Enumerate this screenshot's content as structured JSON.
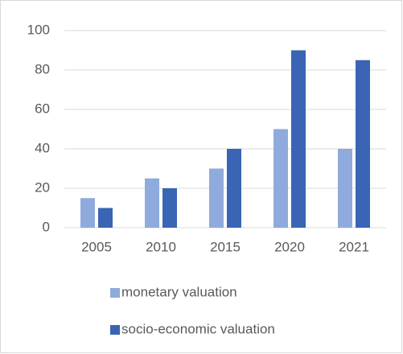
{
  "chart_data": {
    "type": "bar",
    "categories": [
      "2005",
      "2010",
      "2015",
      "2020",
      "2021"
    ],
    "series": [
      {
        "name": "monetary valuation",
        "color": "#8faadc",
        "values": [
          15,
          25,
          30,
          50,
          40
        ]
      },
      {
        "name": "socio-economic valuation",
        "color": "#3a64b4",
        "values": [
          10,
          20,
          40,
          90,
          85
        ]
      }
    ],
    "ylim": [
      0,
      100
    ],
    "yticks": [
      0,
      20,
      40,
      60,
      80,
      100
    ],
    "grid": true,
    "legend": "bottom"
  }
}
